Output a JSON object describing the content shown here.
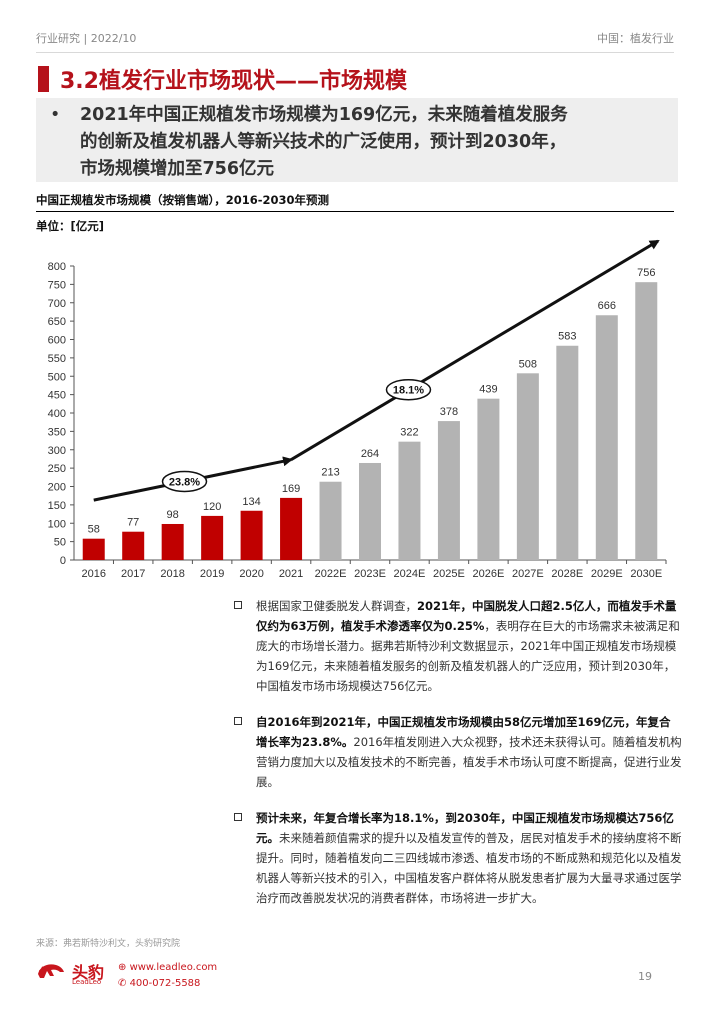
{
  "header": {
    "left": "行业研究 | 2022/10",
    "right": "中国：植发行业"
  },
  "title": "3.2植发行业市场现状——市场规模",
  "summary": {
    "bullet": "•",
    "line1": "2021年中国正规植发市场规模为169亿元，未来随着植发服务",
    "line2": "的创新及植发机器人等新兴技术的广泛使用，预计到2030年，",
    "line3": "市场规模增加至756亿元"
  },
  "chart_title": "中国正规植发市场规模（按销售端），2016-2030年预测",
  "unit_label": "单位：[亿元]",
  "chart_data": {
    "type": "bar",
    "categories": [
      "2016",
      "2017",
      "2018",
      "2019",
      "2020",
      "2021",
      "2022E",
      "2023E",
      "2024E",
      "2025E",
      "2026E",
      "2027E",
      "2028E",
      "2029E",
      "2030E"
    ],
    "values": [
      58,
      77,
      98,
      120,
      134,
      169,
      213,
      264,
      322,
      378,
      439,
      508,
      583,
      666,
      756
    ],
    "ylim": [
      0,
      800
    ],
    "yticks": [
      0,
      50,
      100,
      150,
      200,
      250,
      300,
      350,
      400,
      450,
      500,
      550,
      600,
      650,
      700,
      750,
      800
    ],
    "colors": {
      "actual": "#c00000",
      "forecast": "#b3b3b3"
    },
    "actual_count": 6,
    "annotations": [
      {
        "label": "23.8%",
        "from": "2016",
        "to": "2021"
      },
      {
        "label": "18.1%",
        "from": "2021",
        "to": "2030E"
      }
    ],
    "grid": false,
    "legend": "none"
  },
  "notes": [
    {
      "bold": "",
      "parts": [
        {
          "t": "根据国家卫健委脱发人群调查，",
          "b": false
        },
        {
          "t": "2021年，中国脱发人口超2.5亿人，而植发手术量仅约为63万例，植发手术渗透率仅为0.25%",
          "b": true
        },
        {
          "t": "，表明存在巨大的市场需求未被满足和庞大的市场增长潜力。据弗若斯特沙利文数据显示，2021年中国正规植发市场规模为169亿元，未来随着植发服务的创新及植发机器人的广泛应用，预计到2030年，中国植发市场市场规模达756亿元。",
          "b": false
        }
      ]
    },
    {
      "parts": [
        {
          "t": "自2016年到2021年，中国正规植发市场规模由58亿元增加至169亿元，年复合增长率为23.8%。",
          "b": true
        },
        {
          "t": "2016年植发刚进入大众视野，技术还未获得认可。随着植发机构营销力度加大以及植发技术的不断完善，植发手术市场认可度不断提高，促进行业发展。",
          "b": false
        }
      ]
    },
    {
      "parts": [
        {
          "t": "预计未来，年复合增长率为18.1%，到2030年，中国正规植发市场规模达756亿元。",
          "b": true
        },
        {
          "t": "未来随着颜值需求的提升以及植发宣传的普及，居民对植发手术的接纳度将不断提升。同时，随着植发向二三四线城市渗透、植发市场的不断成熟和规范化以及植发机器人等新兴技术的引入，中国植发客户群体将从脱发患者扩展为大量寻求通过医学治疗而改善脱发状况的消费者群体，市场将进一步扩大。",
          "b": false
        }
      ]
    }
  ],
  "source": "来源：弗若斯特沙利文，头豹研究院",
  "footer": {
    "logo_cn": "头豹",
    "logo_en": "LeadLeo",
    "website": "www.leadleo.com",
    "phone": "400-072-5588",
    "page": "19"
  }
}
